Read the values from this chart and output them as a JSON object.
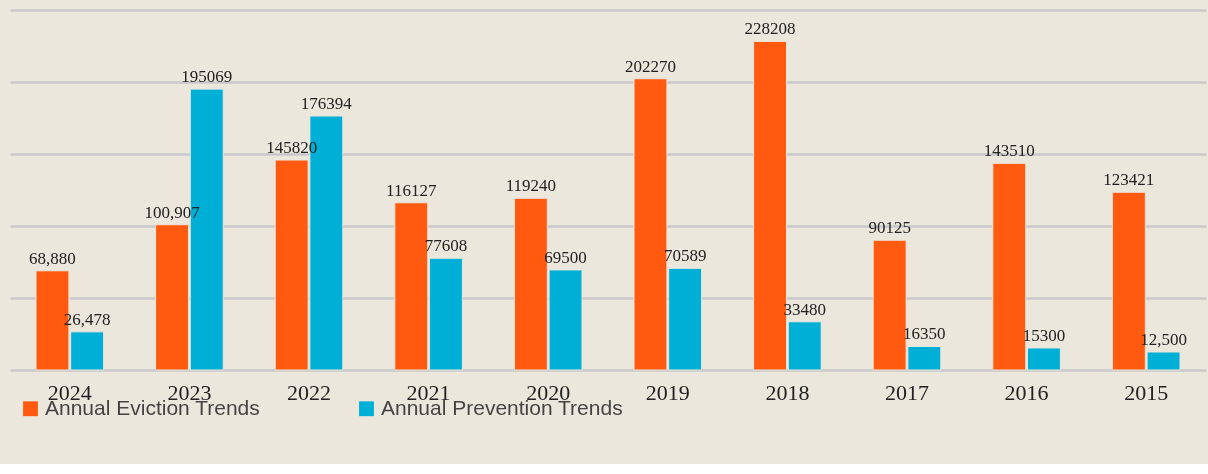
{
  "chart_data": {
    "type": "bar",
    "categories": [
      "2024",
      "2023",
      "2022",
      "2021",
      "2020",
      "2019",
      "2018",
      "2017",
      "2016",
      "2015"
    ],
    "series": [
      {
        "name": "Annual Eviction Trends",
        "color": "#ff5a0f",
        "values": [
          68880,
          100907,
          145820,
          116127,
          119240,
          202270,
          228208,
          90125,
          143510,
          123421
        ],
        "value_labels": [
          "68,880",
          "100,907",
          "145820",
          "116127",
          "119240",
          "202270",
          "228208",
          "90125",
          "143510",
          "123421"
        ]
      },
      {
        "name": "Annual Prevention Trends",
        "color": "#00afd5",
        "values": [
          26478,
          195069,
          176394,
          77608,
          69500,
          70589,
          33480,
          16350,
          15300,
          12500
        ],
        "value_labels": [
          "26,478",
          "195069",
          "176394",
          "77608",
          "69500",
          "70589",
          "33480",
          "16350",
          "15300",
          "12,500"
        ]
      }
    ],
    "ylim": [
      0,
      250000
    ],
    "yticks": [
      {
        "value": 0,
        "label": null
      },
      {
        "value": 50000,
        "label": null
      },
      {
        "value": 100000,
        "label": null
      },
      {
        "value": 150000,
        "label": null
      },
      {
        "value": 200000,
        "label": null
      },
      {
        "value": 250000,
        "label": null
      }
    ],
    "tick_labels": "x",
    "grid": "y",
    "legend": "bottom left"
  }
}
